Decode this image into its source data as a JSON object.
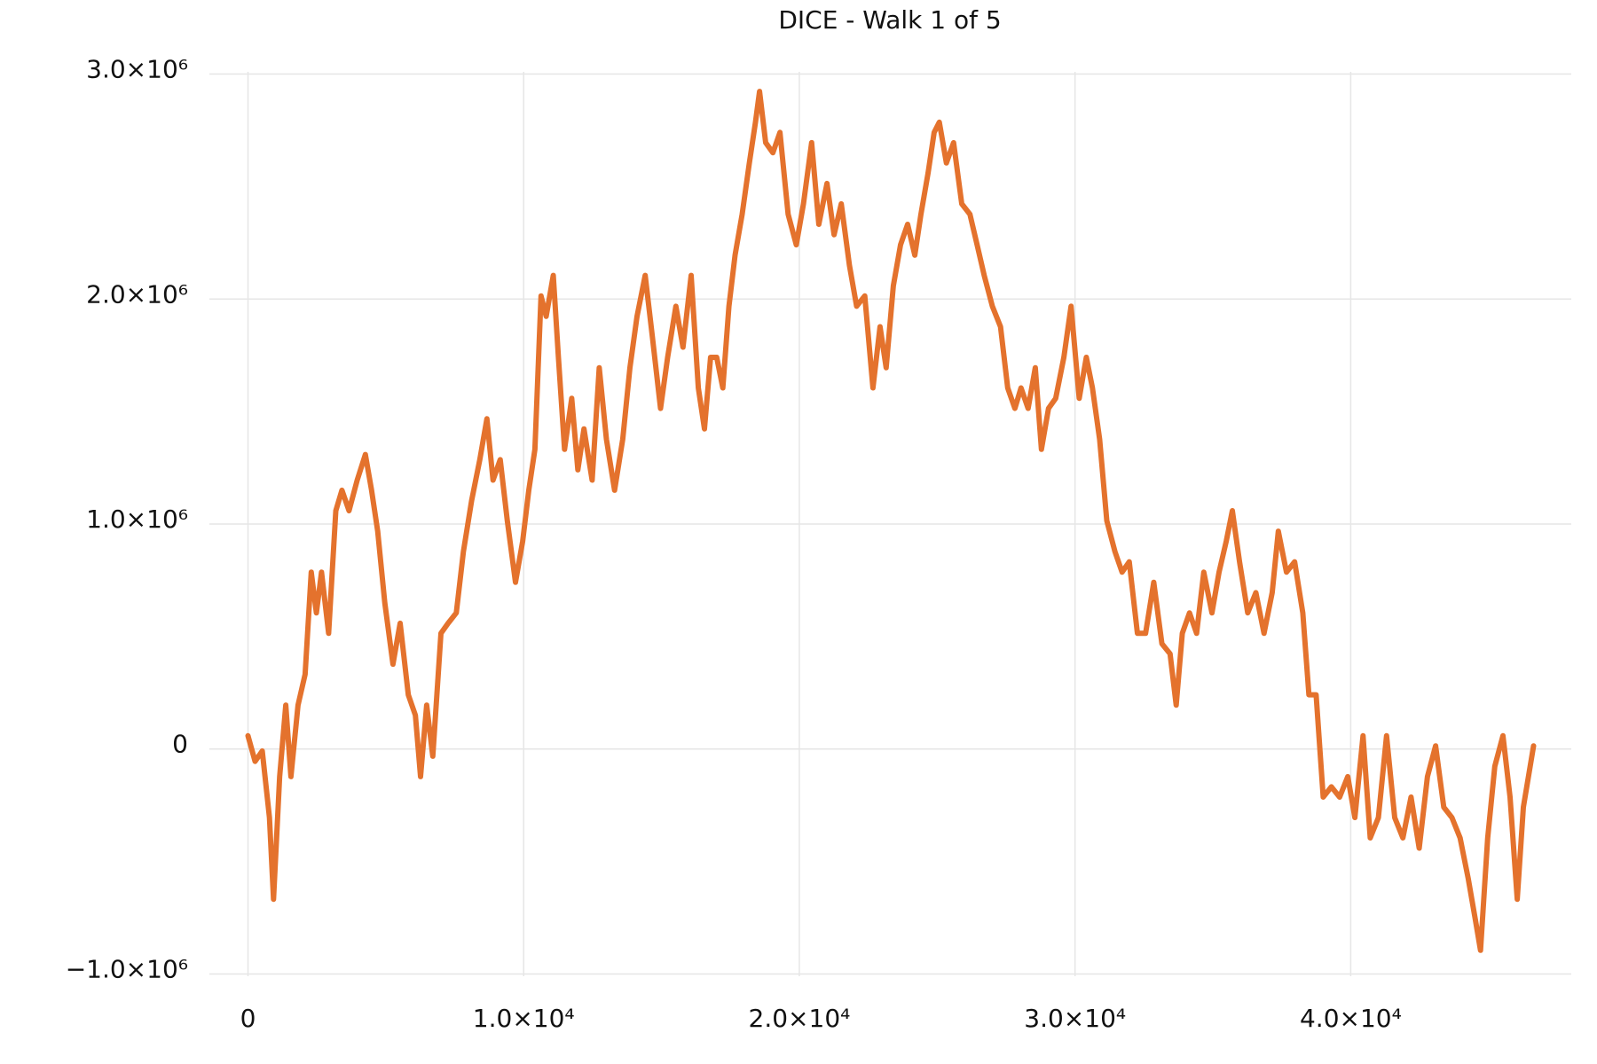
{
  "chart_data": {
    "type": "line",
    "title": "DICE - Walk 1 of 5",
    "x": [
      0,
      259,
      519,
      778,
      926,
      1148,
      1370,
      1556,
      1815,
      2074,
      2296,
      2482,
      2667,
      2926,
      3185,
      3407,
      3667,
      3963,
      4259,
      4482,
      4704,
      4963,
      5260,
      5519,
      5815,
      6074,
      6260,
      6482,
      6704,
      7000,
      7260,
      7556,
      7815,
      8112,
      8408,
      8667,
      8890,
      9149,
      9408,
      9704,
      9964,
      10186,
      10408,
      10630,
      10816,
      11075,
      11260,
      11482,
      11742,
      11964,
      12186,
      12482,
      12742,
      13001,
      13297,
      13594,
      13853,
      14112,
      14409,
      14668,
      14964,
      15223,
      15520,
      15779,
      16075,
      16335,
      16557,
      16779,
      17001,
      17224,
      17446,
      17668,
      17927,
      18187,
      18409,
      18557,
      18779,
      19039,
      19298,
      19594,
      19890,
      20150,
      20446,
      20705,
      21002,
      21261,
      21520,
      21817,
      22076,
      22372,
      22668,
      22928,
      23150,
      23409,
      23669,
      23928,
      24187,
      24409,
      24669,
      24891,
      25076,
      25335,
      25595,
      25891,
      26187,
      26447,
      26706,
      27002,
      27298,
      27558,
      27817,
      28039,
      28299,
      28558,
      28780,
      29039,
      29299,
      29595,
      29854,
      30151,
      30410,
      30632,
      30891,
      31151,
      31447,
      31706,
      31966,
      32262,
      32558,
      32855,
      33151,
      33447,
      33669,
      33891,
      34151,
      34410,
      34669,
      34966,
      35225,
      35484,
      35707,
      35966,
      36262,
      36559,
      36855,
      37151,
      37373,
      37670,
      37966,
      38262,
      38485,
      38744,
      39003,
      39299,
      39596,
      39892,
      40151,
      40448,
      40707,
      41003,
      41300,
      41596,
      41892,
      42189,
      42485,
      42782,
      43078,
      43374,
      43671,
      43967,
      44263,
      44522,
      44708,
      44967,
      45226,
      45522,
      45781,
      46041,
      46263,
      46633
    ],
    "series": [
      {
        "color": "#e4722d",
        "values": [
          59000,
          -55000,
          -9000,
          -305000,
          -668000,
          -123000,
          195000,
          -123000,
          195000,
          332000,
          786000,
          605000,
          786000,
          514000,
          1059000,
          1150000,
          1059000,
          1195000,
          1309000,
          1150000,
          968000,
          650000,
          377000,
          559000,
          241000,
          150000,
          -123000,
          195000,
          -32000,
          514000,
          559000,
          605000,
          877000,
          1105000,
          1286000,
          1468000,
          1195000,
          1286000,
          1014000,
          741000,
          923000,
          1150000,
          1332000,
          2014000,
          1923000,
          2105000,
          1741000,
          1332000,
          1559000,
          1241000,
          1423000,
          1195000,
          1695000,
          1377000,
          1150000,
          1377000,
          1695000,
          1923000,
          2105000,
          1832000,
          1514000,
          1741000,
          1968000,
          1786000,
          2105000,
          1605000,
          1423000,
          1741000,
          1741000,
          1605000,
          1968000,
          2195000,
          2377000,
          2605000,
          2786000,
          2923000,
          2695000,
          2650000,
          2741000,
          2377000,
          2241000,
          2423000,
          2695000,
          2332000,
          2514000,
          2286000,
          2423000,
          2150000,
          1968000,
          2014000,
          1605000,
          1877000,
          1695000,
          2059000,
          2241000,
          2332000,
          2195000,
          2377000,
          2559000,
          2741000,
          2786000,
          2605000,
          2695000,
          2423000,
          2377000,
          2241000,
          2105000,
          1968000,
          1877000,
          1605000,
          1514000,
          1605000,
          1514000,
          1695000,
          1332000,
          1514000,
          1559000,
          1741000,
          1968000,
          1559000,
          1741000,
          1605000,
          1377000,
          1014000,
          877000,
          786000,
          832000,
          514000,
          514000,
          741000,
          468000,
          423000,
          195000,
          514000,
          605000,
          514000,
          786000,
          605000,
          786000,
          923000,
          1059000,
          832000,
          605000,
          695000,
          514000,
          695000,
          968000,
          786000,
          832000,
          605000,
          241000,
          241000,
          -214000,
          -168000,
          -214000,
          -123000,
          -305000,
          59000,
          -395000,
          -305000,
          59000,
          -305000,
          -395000,
          -214000,
          -441000,
          -123000,
          14000,
          -259000,
          -305000,
          -395000,
          -577000,
          -759000,
          -895000,
          -395000,
          -77000,
          59000,
          -214000,
          -668000,
          -259000,
          14000
        ]
      }
    ],
    "xlim": [
      -1400,
      48000
    ],
    "ylim": [
      -1010000,
      3010000
    ],
    "xticks": [
      0,
      {
        "value": 10000,
        "label": "1.0×10⁴"
      },
      {
        "value": 20000,
        "label": "2.0×10⁴"
      },
      {
        "value": 30000,
        "label": "3.0×10⁴"
      },
      {
        "value": 40000,
        "label": "4.0×10⁴"
      }
    ],
    "yticks": [
      {
        "value": -1000000,
        "label": "−1.0×10⁶"
      },
      0,
      {
        "value": 1000000,
        "label": "1.0×10⁶"
      },
      {
        "value": 2000000,
        "label": "2.0×10⁶"
      },
      {
        "value": 3000000,
        "label": "3.0×10⁶"
      }
    ],
    "grid": true
  }
}
